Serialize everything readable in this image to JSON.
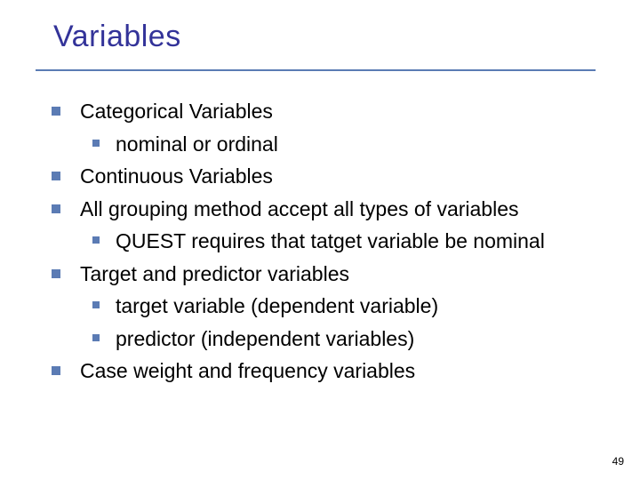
{
  "title": "Variables",
  "title_color": "#333399",
  "title_fontsize": 34,
  "underline_color": "#5b7bb4",
  "bullet_color": "#5b7bb4",
  "body_text_color": "#000000",
  "body_fontsize": 23,
  "background_color": "#ffffff",
  "page_number": "49",
  "items": {
    "i0": "Categorical Variables",
    "i0_0": "nominal or ordinal",
    "i1": "Continuous Variables",
    "i2": "All grouping method accept all types of variables",
    "i2_0": "QUEST requires that tatget variable be nominal",
    "i3": "Target and predictor variables",
    "i3_0": "target variable (dependent variable)",
    "i3_1": "predictor (independent variables)",
    "i4": "Case weight and frequency variables"
  }
}
